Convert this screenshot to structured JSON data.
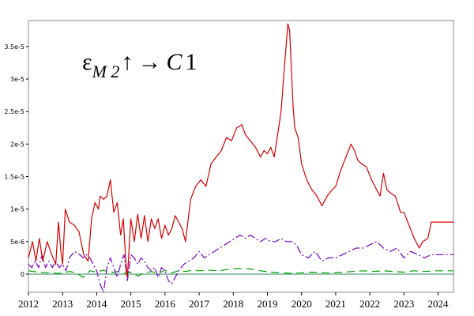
{
  "chart_data": {
    "type": "line",
    "annotation": {
      "epsilon": "ε",
      "subscript": "M 2",
      "up_arrow": "↑",
      "right_arrow": "→",
      "target_letter": "C",
      "target_number": "1"
    },
    "xlim": [
      2012.0,
      2024.45
    ],
    "ylim": [
      -2.8e-06,
      3.9e-05
    ],
    "x_ticks": [
      "2012",
      "2013",
      "2014",
      "2015",
      "2016",
      "2017",
      "2018",
      "2019",
      "2020",
      "2021",
      "2022",
      "2023",
      "2024"
    ],
    "y_ticks": [
      {
        "label": "3.5e-5",
        "value": 3.5e-05
      },
      {
        "label": "3e-5",
        "value": 3e-05
      },
      {
        "label": "2.5e-5",
        "value": 2.5e-05
      },
      {
        "label": "2e-5",
        "value": 2e-05
      },
      {
        "label": "1.5e-5",
        "value": 1.5e-05
      },
      {
        "label": "1e-5",
        "value": 1e-05
      },
      {
        "label": "5e-6",
        "value": 5e-06
      },
      {
        "label": "0",
        "value": 0
      }
    ],
    "colors": {
      "red": "#d40000",
      "purple": "#7a00c8",
      "green": "#00a000",
      "zero_line": "#2e8b57"
    },
    "series": [
      {
        "color": "red",
        "style": "solid",
        "x": [
          2012.0,
          2012.12,
          2012.22,
          2012.32,
          2012.42,
          2012.55,
          2012.68,
          2012.8,
          2012.88,
          2012.95,
          2013.0,
          2013.08,
          2013.2,
          2013.35,
          2013.48,
          2013.62,
          2013.75,
          2013.85,
          2013.95,
          2014.05,
          2014.1,
          2014.2,
          2014.3,
          2014.4,
          2014.5,
          2014.6,
          2014.7,
          2014.78,
          2014.85,
          2014.9,
          2015.0,
          2015.1,
          2015.2,
          2015.3,
          2015.4,
          2015.5,
          2015.6,
          2015.7,
          2015.8,
          2015.9,
          2016.0,
          2016.1,
          2016.2,
          2016.3,
          2016.4,
          2016.5,
          2016.6,
          2016.75,
          2016.9,
          2017.05,
          2017.2,
          2017.35,
          2017.5,
          2017.65,
          2017.8,
          2017.95,
          2018.1,
          2018.25,
          2018.35,
          2018.5,
          2018.65,
          2018.8,
          2018.9,
          2019.0,
          2019.1,
          2019.2,
          2019.3,
          2019.4,
          2019.5,
          2019.6,
          2019.65,
          2019.7,
          2019.75,
          2019.8,
          2019.9,
          2020.0,
          2020.15,
          2020.3,
          2020.45,
          2020.6,
          2020.75,
          2020.9,
          2021.0,
          2021.15,
          2021.3,
          2021.45,
          2021.55,
          2021.65,
          2021.75,
          2021.9,
          2022.05,
          2022.2,
          2022.3,
          2022.4,
          2022.5,
          2022.6,
          2022.75,
          2022.9,
          2023.0,
          2023.15,
          2023.3,
          2023.45,
          2023.55,
          2023.7,
          2023.8,
          2023.9,
          2024.0,
          2024.1,
          2024.2,
          2024.3,
          2024.45
        ],
        "y": [
          2.5e-06,
          5e-06,
          2e-06,
          5.5e-06,
          2e-06,
          5e-06,
          3e-06,
          1.5e-06,
          8e-06,
          3.5e-06,
          1.5e-06,
          1e-05,
          8e-06,
          7.5e-06,
          6.5e-06,
          3e-06,
          2e-06,
          8.5e-06,
          1.1e-05,
          1e-05,
          1.2e-05,
          1.15e-05,
          1.2e-05,
          1.45e-05,
          9.5e-06,
          1.1e-05,
          6e-06,
          8.5e-06,
          2e-06,
          -5e-07,
          8.5e-06,
          5e-06,
          9.2e-06,
          5.5e-06,
          9e-06,
          5e-06,
          8.5e-06,
          7e-06,
          8.5e-06,
          5.5e-06,
          7.5e-06,
          6e-06,
          7e-06,
          9e-06,
          8e-06,
          7e-06,
          5e-06,
          1.15e-05,
          1.35e-05,
          1.45e-05,
          1.35e-05,
          1.7e-05,
          1.8e-05,
          1.9e-05,
          2.1e-05,
          2.05e-05,
          2.25e-05,
          2.3e-05,
          2.15e-05,
          2.05e-05,
          1.95e-05,
          1.8e-05,
          1.9e-05,
          1.85e-05,
          1.95e-05,
          1.8e-05,
          2.15e-05,
          2.5e-05,
          3.2e-05,
          3.85e-05,
          3.75e-05,
          3.2e-05,
          2.6e-05,
          2.25e-05,
          2.1e-05,
          1.7e-05,
          1.45e-05,
          1.3e-05,
          1.2e-05,
          1.05e-05,
          1.2e-05,
          1.3e-05,
          1.35e-05,
          1.6e-05,
          1.8e-05,
          2e-05,
          1.9e-05,
          1.75e-05,
          1.7e-05,
          1.65e-05,
          1.45e-05,
          1.3e-05,
          1.2e-05,
          1.55e-05,
          1.3e-05,
          1.25e-05,
          1.2e-05,
          9.5e-06,
          9.5e-06,
          7.5e-06,
          5.5e-06,
          4e-06,
          5e-06,
          5.5e-06,
          8e-06,
          8e-06,
          8e-06,
          8e-06,
          8e-06,
          8e-06,
          8e-06
        ]
      },
      {
        "color": "purple",
        "style": "dashdot",
        "x": [
          2012.0,
          2012.1,
          2012.2,
          2012.3,
          2012.4,
          2012.5,
          2012.6,
          2012.7,
          2012.8,
          2012.9,
          2013.0,
          2013.1,
          2013.2,
          2013.35,
          2013.5,
          2013.6,
          2013.7,
          2013.8,
          2013.9,
          2014.0,
          2014.1,
          2014.2,
          2014.3,
          2014.4,
          2014.5,
          2014.6,
          2014.7,
          2014.8,
          2014.9,
          2015.0,
          2015.1,
          2015.2,
          2015.3,
          2015.4,
          2015.5,
          2015.6,
          2015.7,
          2015.8,
          2015.9,
          2016.0,
          2016.1,
          2016.2,
          2016.3,
          2016.4,
          2016.55,
          2016.7,
          2016.85,
          2017.0,
          2017.15,
          2017.3,
          2017.45,
          2017.6,
          2017.75,
          2017.9,
          2018.05,
          2018.2,
          2018.35,
          2018.5,
          2018.65,
          2018.8,
          2018.95,
          2019.1,
          2019.25,
          2019.4,
          2019.55,
          2019.7,
          2019.85,
          2020.0,
          2020.2,
          2020.4,
          2020.6,
          2020.8,
          2021.0,
          2021.2,
          2021.4,
          2021.6,
          2021.8,
          2022.0,
          2022.2,
          2022.4,
          2022.6,
          2022.8,
          2023.0,
          2023.2,
          2023.4,
          2023.6,
          2023.8,
          2024.0,
          2024.2,
          2024.45
        ],
        "y": [
          1.5e-06,
          1e-06,
          2e-06,
          1e-06,
          3e-06,
          1e-06,
          2e-06,
          1e-06,
          2e-06,
          1e-06,
          1.5e-06,
          5e-07,
          2.5e-06,
          3.5e-06,
          3e-06,
          2.5e-06,
          3e-06,
          2.5e-06,
          1.5e-06,
          5e-07,
          -1.5e-06,
          -2.8e-06,
          1e-06,
          2.5e-06,
          1e-06,
          -5e-07,
          1.5e-06,
          3e-06,
          -1e-06,
          3e-06,
          2.5e-06,
          1.5e-06,
          2.5e-06,
          2e-06,
          1e-06,
          5e-07,
          1e-06,
          -5e-07,
          1e-06,
          5e-07,
          -1e-06,
          -1.5e-06,
          -5e-07,
          5e-07,
          1.5e-06,
          2e-06,
          2.5e-06,
          3.5e-06,
          2.5e-06,
          3e-06,
          3.5e-06,
          4e-06,
          4.5e-06,
          5e-06,
          5.5e-06,
          6e-06,
          5.5e-06,
          6e-06,
          5.5e-06,
          5e-06,
          5.5e-06,
          5e-06,
          5e-06,
          5.5e-06,
          5e-06,
          5e-06,
          4.5e-06,
          3e-06,
          2.5e-06,
          3.5e-06,
          2e-06,
          2.5e-06,
          2.5e-06,
          3e-06,
          3.5e-06,
          4e-06,
          4e-06,
          4.5e-06,
          5e-06,
          4e-06,
          3.5e-06,
          4e-06,
          2.5e-06,
          3.5e-06,
          3e-06,
          2.5e-06,
          3e-06,
          3e-06,
          3e-06,
          3e-06
        ]
      },
      {
        "color": "green",
        "style": "dashed",
        "x": [
          2012.0,
          2012.3,
          2012.6,
          2012.9,
          2013.2,
          2013.4,
          2013.6,
          2013.8,
          2014.0,
          2014.2,
          2014.4,
          2014.6,
          2014.8,
          2015.0,
          2015.2,
          2015.4,
          2015.6,
          2015.8,
          2016.0,
          2016.2,
          2016.4,
          2016.6,
          2016.8,
          2017.0,
          2017.3,
          2017.6,
          2017.9,
          2018.2,
          2018.5,
          2018.8,
          2019.1,
          2019.4,
          2019.7,
          2020.0,
          2020.3,
          2020.6,
          2020.9,
          2021.2,
          2021.5,
          2021.8,
          2022.1,
          2022.4,
          2022.7,
          2023.0,
          2023.3,
          2023.6,
          2023.9,
          2024.2,
          2024.45
        ],
        "y": [
          5e-07,
          3e-07,
          2e-07,
          1e-07,
          4e-07,
          2e-07,
          -5e-07,
          5e-07,
          3e-07,
          6e-07,
          2e-07,
          4e-07,
          1e-07,
          3e-07,
          -3e-07,
          2e-07,
          4e-07,
          1e-07,
          6e-07,
          2e-07,
          5e-07,
          4e-07,
          6e-07,
          5e-07,
          6e-07,
          5e-07,
          8e-07,
          9e-07,
          8e-07,
          5e-07,
          3e-07,
          2e-07,
          1e-07,
          2e-07,
          3e-07,
          2e-07,
          2e-07,
          3e-07,
          4e-07,
          5e-07,
          4e-07,
          5e-07,
          4e-07,
          3e-07,
          5e-07,
          4e-07,
          5e-07,
          5e-07,
          5e-07
        ]
      }
    ]
  }
}
